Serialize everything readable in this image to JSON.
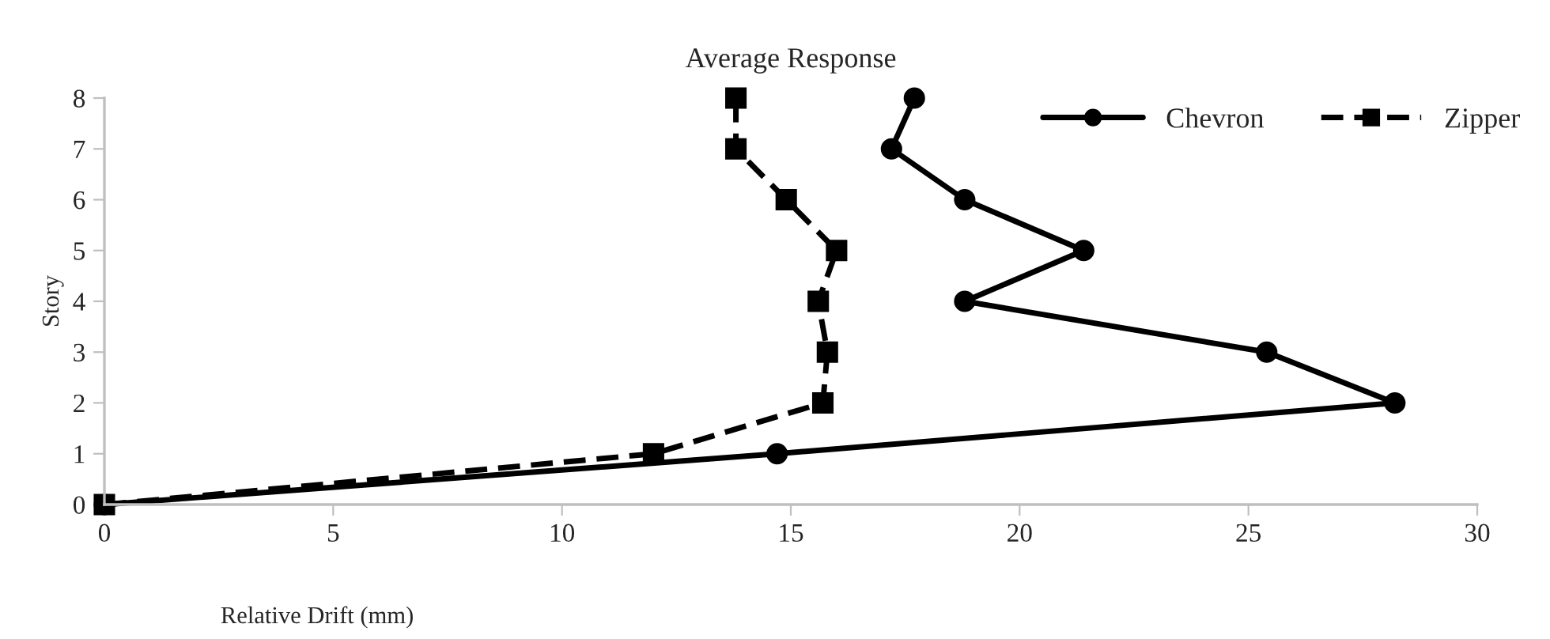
{
  "chart_data": {
    "type": "line",
    "title": "Average Response",
    "xlabel": "Relative Drift (mm)",
    "ylabel": "Story",
    "series": [
      {
        "name": "Chevron",
        "color": "#000000",
        "marker": "circle",
        "line_style": "solid",
        "x": [
          0,
          14.7,
          28.2,
          25.4,
          18.8,
          21.4,
          18.8,
          17.2,
          17.7
        ],
        "values": [
          0,
          1,
          2,
          3,
          4,
          5,
          6,
          7,
          8
        ]
      },
      {
        "name": "Zipper",
        "color": "#000000",
        "marker": "square",
        "line_style": "dashed",
        "x": [
          0,
          12.0,
          15.7,
          15.8,
          15.6,
          16.0,
          14.9,
          13.8,
          13.8
        ],
        "values": [
          0,
          1,
          2,
          3,
          4,
          5,
          6,
          7,
          8
        ]
      }
    ],
    "xlim": [
      0,
      30
    ],
    "xticks": [
      0,
      5,
      10,
      15,
      20,
      25,
      30
    ],
    "ylim": [
      0,
      8
    ],
    "yticks": [
      0,
      1,
      2,
      3,
      4,
      5,
      6,
      7,
      8
    ],
    "grid": false,
    "legend": "top right"
  }
}
